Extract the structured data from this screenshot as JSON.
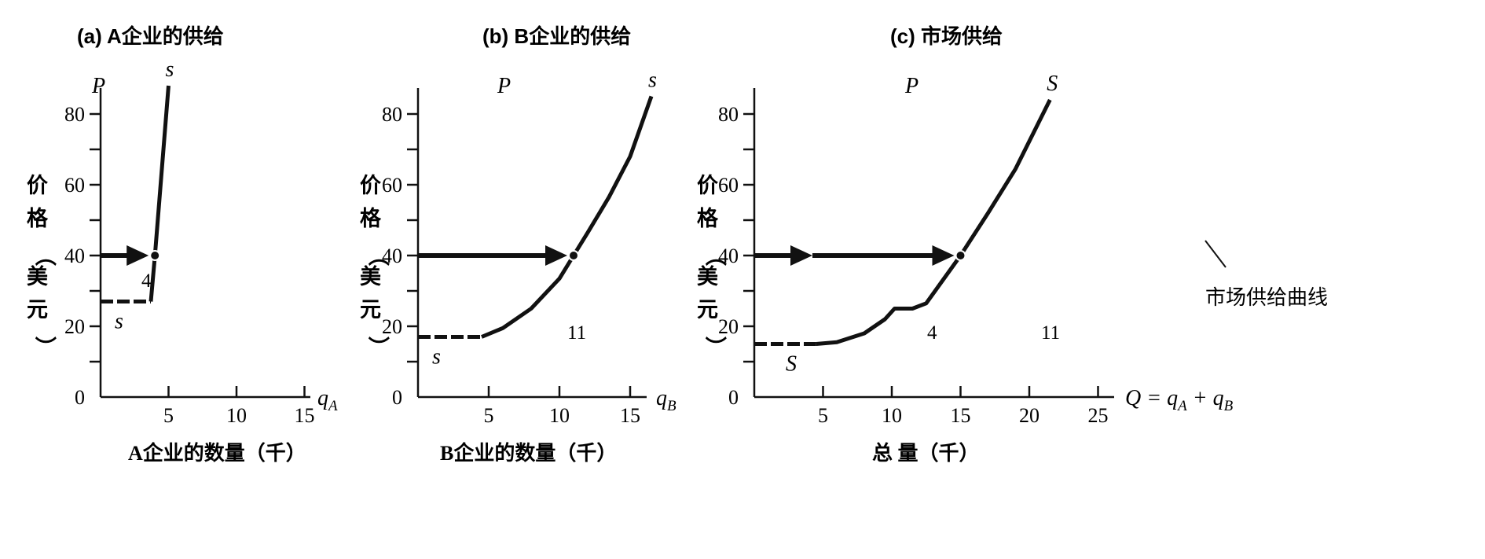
{
  "chart_data": [
    {
      "type": "line",
      "title": "(a)  A企业的供给",
      "y_axis_symbol": "P",
      "ylabel": "价格（美元）",
      "xlabel": "A企业的数量（千）",
      "x_axis_symbol": "q",
      "x_axis_subscript": "A",
      "xlim": [
        0,
        17
      ],
      "ylim": [
        0,
        88
      ],
      "xticks": [
        5,
        10,
        15
      ],
      "yticks": [
        0,
        20,
        40,
        60,
        80
      ],
      "series": [
        {
          "name": "s",
          "segments": [
            {
              "style": "dashed",
              "points": [
                [
                  0,
                  27
                ],
                [
                  3.7,
                  27
                ]
              ]
            },
            {
              "style": "solid",
              "points": [
                [
                  3.7,
                  27
                ],
                [
                  4.0,
                  40
                ],
                [
                  5.0,
                  88
                ]
              ]
            }
          ]
        }
      ],
      "curve_label_end": "s",
      "curve_label_start": "s",
      "highlight": {
        "x": 4,
        "y": 40,
        "quantity_label": "4"
      }
    },
    {
      "type": "line",
      "title": "(b)  B企业的供给",
      "y_axis_symbol": "P",
      "ylabel": "价格（美元）",
      "xlabel": "B企业的数量（千）",
      "x_axis_symbol": "q",
      "x_axis_subscript": "B",
      "xlim": [
        0,
        17.5
      ],
      "ylim": [
        0,
        88
      ],
      "xticks": [
        5,
        10,
        15
      ],
      "yticks": [
        0,
        20,
        40,
        60,
        80
      ],
      "series": [
        {
          "name": "s",
          "segments": [
            {
              "style": "dashed",
              "points": [
                [
                  0,
                  17
                ],
                [
                  4.5,
                  17
                ]
              ]
            },
            {
              "style": "solid",
              "points": [
                [
                  4.5,
                  17
                ],
                [
                  6,
                  19.5
                ],
                [
                  8,
                  25
                ],
                [
                  10,
                  33.5
                ],
                [
                  11,
                  40
                ],
                [
                  12,
                  46.5
                ],
                [
                  13.5,
                  56.5
                ],
                [
                  15,
                  68
                ],
                [
                  16.5,
                  85
                ]
              ]
            }
          ]
        }
      ],
      "curve_label_end": "s",
      "curve_label_start": "s",
      "highlight": {
        "x": 11,
        "y": 40,
        "quantity_label": "11"
      }
    },
    {
      "type": "line",
      "title": "(c)  市场供给",
      "y_axis_symbol": "P",
      "ylabel": "价格（美元）",
      "xlabel": "总   量（千）",
      "x_axis_symbol": "Q = q",
      "x_axis_symbol_tail": " + q",
      "x_axis_subscript": "A",
      "x_axis_subscript_tail": "B",
      "xlim": [
        0,
        25.5
      ],
      "ylim": [
        0,
        88
      ],
      "xticks": [
        5,
        10,
        15,
        20,
        25
      ],
      "yticks": [
        0,
        20,
        40,
        60,
        80
      ],
      "series": [
        {
          "name": "S",
          "segments": [
            {
              "style": "dashed",
              "points": [
                [
                  0,
                  15
                ],
                [
                  4.5,
                  15
                ]
              ]
            },
            {
              "style": "solid",
              "points": [
                [
                  4.5,
                  15
                ],
                [
                  6,
                  15.5
                ],
                [
                  8,
                  18
                ],
                [
                  9.5,
                  22
                ],
                [
                  10.2,
                  25
                ],
                [
                  11.5,
                  25
                ],
                [
                  12.5,
                  26.5
                ],
                [
                  15,
                  40
                ],
                [
                  17,
                  52
                ],
                [
                  19,
                  64.5
                ],
                [
                  21.5,
                  84
                ]
              ]
            }
          ]
        }
      ],
      "curve_label_end": "S",
      "curve_label_start": "S",
      "curve_annotation": "市场供给曲线",
      "highlight": {
        "x": 15,
        "y": 40,
        "quantity_labels": [
          "4",
          "11"
        ],
        "arrow_break_x": 4
      }
    }
  ]
}
